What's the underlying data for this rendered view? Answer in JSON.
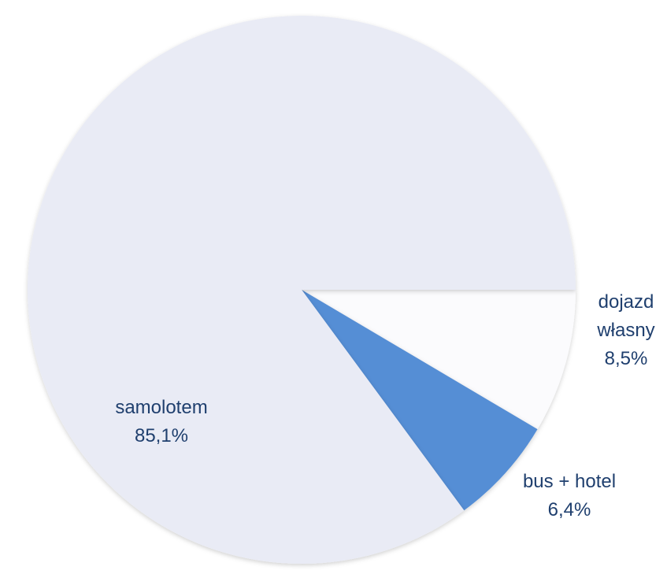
{
  "chart_data": {
    "type": "pie",
    "categories": [
      "dojazd własny",
      "bus + hotel",
      "samolotem"
    ],
    "values": [
      8.5,
      6.4,
      85.1
    ],
    "value_labels": [
      "8,5%",
      "6,4%",
      "85,1%"
    ],
    "colors": [
      "#fbfbfd",
      "#558ed5",
      "#e9ebf5"
    ]
  }
}
